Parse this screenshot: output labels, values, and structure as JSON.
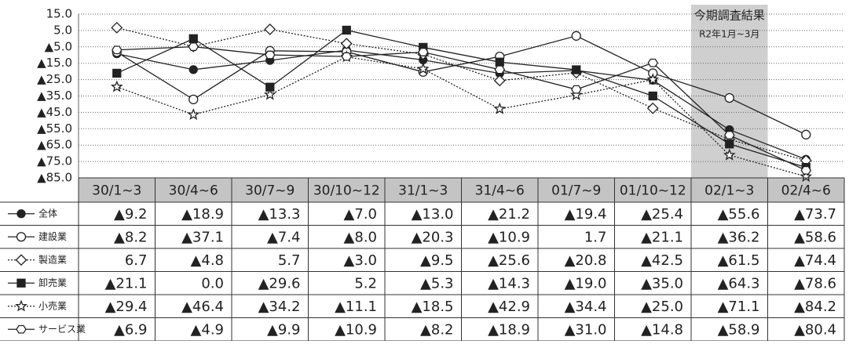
{
  "chart_data": {
    "type": "line",
    "categories": [
      "30/1~3",
      "30/4~6",
      "30/7~9",
      "30/10~12",
      "31/1~3",
      "31/4~6",
      "01/7~9",
      "01/10~12",
      "02/1~3",
      "02/4~6"
    ],
    "ylim": [
      -85,
      15
    ],
    "yticks": [
      {
        "value": 15,
        "label": "15.0"
      },
      {
        "value": 5,
        "label": "5.0"
      },
      {
        "value": -5,
        "label": "▲5.0"
      },
      {
        "value": -15,
        "label": "▲15.0"
      },
      {
        "value": -25,
        "label": "▲25.0"
      },
      {
        "value": -35,
        "label": "▲35.0"
      },
      {
        "value": -45,
        "label": "▲45.0"
      },
      {
        "value": -55,
        "label": "▲55.0"
      },
      {
        "value": -65,
        "label": "▲65.0"
      },
      {
        "value": -75,
        "label": "▲75.0"
      },
      {
        "value": -85,
        "label": "▲85.0"
      }
    ],
    "grid": true,
    "annotation": {
      "title": "今期調査結果",
      "subtitle": "R2年1月~3月",
      "category": 8
    },
    "series": [
      {
        "name": "全体",
        "color": "#222",
        "marker": "circle-filled",
        "dashed": false,
        "values": [
          -9.2,
          -18.9,
          -13.3,
          -7.0,
          -13.0,
          -21.2,
          -19.4,
          -25.4,
          -55.6,
          -73.7
        ],
        "value_labels": [
          "▲9.2",
          "▲18.9",
          "▲13.3",
          "▲7.0",
          "▲13.0",
          "▲21.2",
          "▲19.4",
          "▲25.4",
          "▲55.6",
          "▲73.7"
        ]
      },
      {
        "name": "建設業",
        "color": "#222",
        "marker": "circle-open",
        "dashed": false,
        "values": [
          -8.2,
          -37.1,
          -7.4,
          -8.0,
          -20.3,
          -10.9,
          1.7,
          -21.1,
          -36.2,
          -58.6
        ],
        "value_labels": [
          "▲8.2",
          "▲37.1",
          "▲7.4",
          "▲8.0",
          "▲20.3",
          "▲10.9",
          "1.7",
          "▲21.1",
          "▲36.2",
          "▲58.6"
        ]
      },
      {
        "name": "製造業",
        "color": "#222",
        "marker": "diamond-open",
        "dashed": true,
        "values": [
          6.7,
          -4.8,
          5.7,
          -3.0,
          -9.5,
          -25.6,
          -20.8,
          -42.5,
          -61.5,
          -74.4
        ],
        "value_labels": [
          "6.7",
          "▲4.8",
          "5.7",
          "▲3.0",
          "▲9.5",
          "▲25.6",
          "▲20.8",
          "▲42.5",
          "▲61.5",
          "▲74.4"
        ]
      },
      {
        "name": "卸売業",
        "color": "#222",
        "marker": "square-filled",
        "dashed": false,
        "values": [
          -21.1,
          0.0,
          -29.6,
          5.2,
          -5.3,
          -14.3,
          -19.0,
          -35.0,
          -64.3,
          -78.6
        ],
        "value_labels": [
          "▲21.1",
          "0.0",
          "▲29.6",
          "5.2",
          "▲5.3",
          "▲14.3",
          "▲19.0",
          "▲35.0",
          "▲64.3",
          "▲78.6"
        ]
      },
      {
        "name": "小売業",
        "color": "#222",
        "marker": "star-open",
        "dashed": true,
        "values": [
          -29.4,
          -46.4,
          -34.2,
          -11.1,
          -18.5,
          -42.9,
          -34.4,
          -25.0,
          -71.1,
          -84.2
        ],
        "value_labels": [
          "▲29.4",
          "▲46.4",
          "▲34.2",
          "▲11.1",
          "▲18.5",
          "▲42.9",
          "▲34.4",
          "▲25.0",
          "▲71.1",
          "▲84.2"
        ]
      },
      {
        "name": "サービス業",
        "color": "#222",
        "marker": "hex-open",
        "dashed": false,
        "values": [
          -6.9,
          -4.9,
          -9.9,
          -10.9,
          -8.2,
          -18.9,
          -31.0,
          -14.8,
          -58.9,
          -80.4
        ],
        "value_labels": [
          "▲6.9",
          "▲4.9",
          "▲9.9",
          "▲10.9",
          "▲8.2",
          "▲18.9",
          "▲31.0",
          "▲14.8",
          "▲58.9",
          "▲80.4"
        ]
      }
    ]
  }
}
